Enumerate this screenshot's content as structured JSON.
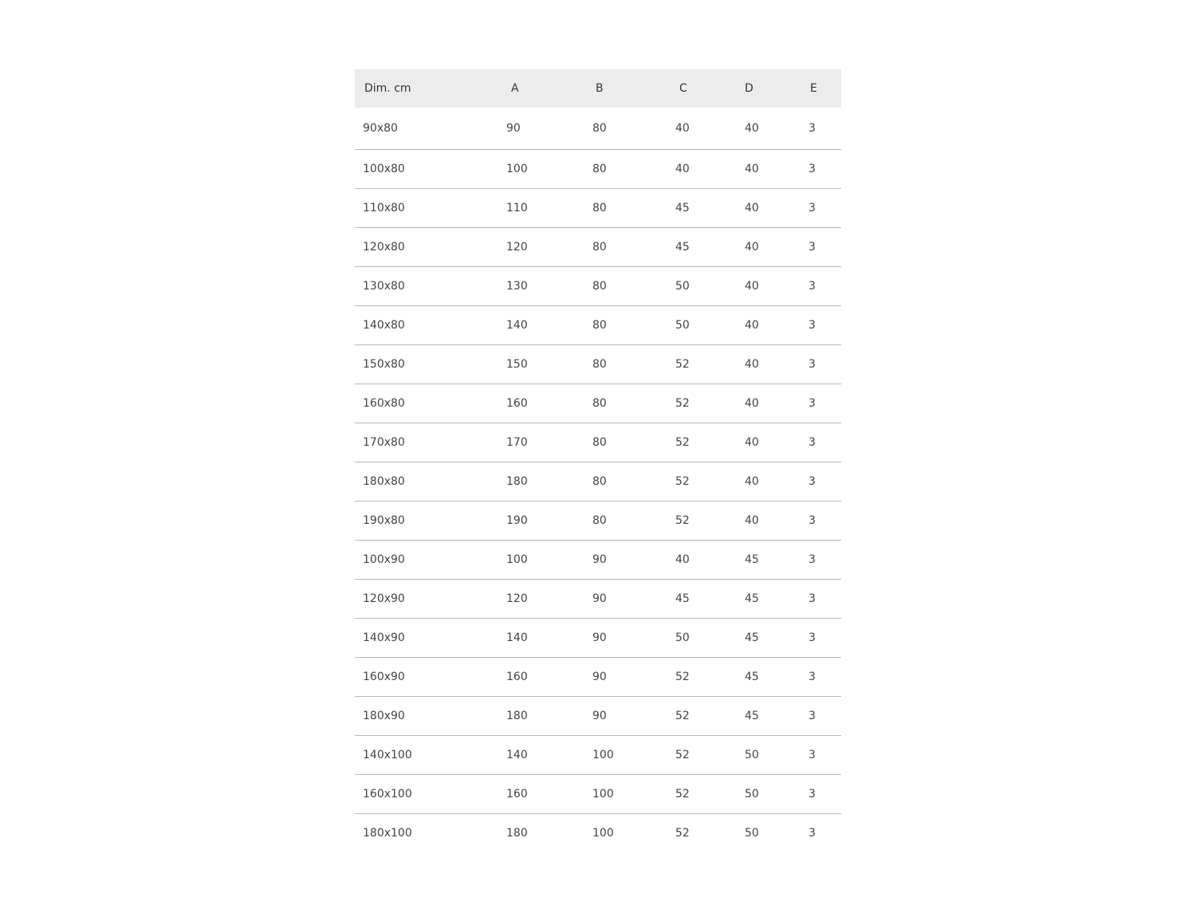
{
  "table": {
    "headers": [
      "Dim. cm",
      "A",
      "B",
      "C",
      "D",
      "E"
    ],
    "rows": [
      [
        "90x80",
        "90",
        "80",
        "40",
        "40",
        "3"
      ],
      [
        "100x80",
        "100",
        "80",
        "40",
        "40",
        "3"
      ],
      [
        "110x80",
        "110",
        "80",
        "45",
        "40",
        "3"
      ],
      [
        "120x80",
        "120",
        "80",
        "45",
        "40",
        "3"
      ],
      [
        "130x80",
        "130",
        "80",
        "50",
        "40",
        "3"
      ],
      [
        "140x80",
        "140",
        "80",
        "50",
        "40",
        "3"
      ],
      [
        "150x80",
        "150",
        "80",
        "52",
        "40",
        "3"
      ],
      [
        "160x80",
        "160",
        "80",
        "52",
        "40",
        "3"
      ],
      [
        "170x80",
        "170",
        "80",
        "52",
        "40",
        "3"
      ],
      [
        "180x80",
        "180",
        "80",
        "52",
        "40",
        "3"
      ],
      [
        "190x80",
        "190",
        "80",
        "52",
        "40",
        "3"
      ],
      [
        "100x90",
        "100",
        "90",
        "40",
        "45",
        "3"
      ],
      [
        "120x90",
        "120",
        "90",
        "45",
        "45",
        "3"
      ],
      [
        "140x90",
        "140",
        "90",
        "50",
        "45",
        "3"
      ],
      [
        "160x90",
        "160",
        "90",
        "52",
        "45",
        "3"
      ],
      [
        "180x90",
        "180",
        "90",
        "52",
        "45",
        "3"
      ],
      [
        "140x100",
        "140",
        "100",
        "52",
        "50",
        "3"
      ],
      [
        "160x100",
        "160",
        "100",
        "52",
        "50",
        "3"
      ],
      [
        "180x100",
        "180",
        "100",
        "52",
        "50",
        "3"
      ]
    ]
  },
  "colors": {
    "header_bg": "#ececec",
    "divider": "#b8b8b8",
    "text": "#444444"
  }
}
